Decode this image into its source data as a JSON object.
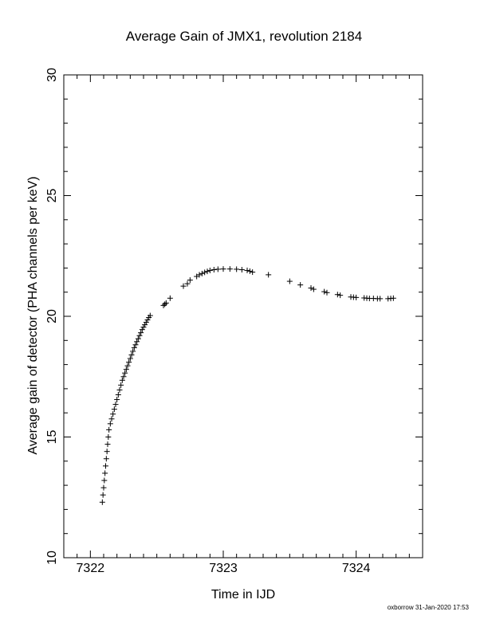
{
  "chart_data": {
    "type": "scatter",
    "title": "Average Gain of JMX1, revolution 2184",
    "xlabel": "Time in IJD",
    "ylabel": "Average gain of detector (PHA channels per keV)",
    "xlim": [
      7321.8,
      7324.5
    ],
    "ylim": [
      10,
      30
    ],
    "xticks": [
      7322,
      7323,
      7324
    ],
    "yticks": [
      10,
      15,
      20,
      25,
      30
    ],
    "marker": "+",
    "marker_color": "#000000",
    "grid": false,
    "points": [
      [
        7322.09,
        12.3
      ],
      [
        7322.095,
        12.6
      ],
      [
        7322.1,
        12.9
      ],
      [
        7322.105,
        13.2
      ],
      [
        7322.11,
        13.5
      ],
      [
        7322.115,
        13.8
      ],
      [
        7322.12,
        14.1
      ],
      [
        7322.125,
        14.4
      ],
      [
        7322.13,
        14.7
      ],
      [
        7322.135,
        15.0
      ],
      [
        7322.14,
        15.3
      ],
      [
        7322.15,
        15.55
      ],
      [
        7322.16,
        15.75
      ],
      [
        7322.17,
        15.95
      ],
      [
        7322.18,
        16.15
      ],
      [
        7322.19,
        16.35
      ],
      [
        7322.2,
        16.55
      ],
      [
        7322.21,
        16.75
      ],
      [
        7322.22,
        16.95
      ],
      [
        7322.23,
        17.15
      ],
      [
        7322.24,
        17.35
      ],
      [
        7322.25,
        17.5
      ],
      [
        7322.26,
        17.65
      ],
      [
        7322.27,
        17.8
      ],
      [
        7322.28,
        17.95
      ],
      [
        7322.29,
        18.1
      ],
      [
        7322.3,
        18.25
      ],
      [
        7322.31,
        18.4
      ],
      [
        7322.32,
        18.55
      ],
      [
        7322.33,
        18.7
      ],
      [
        7322.34,
        18.82
      ],
      [
        7322.35,
        18.95
      ],
      [
        7322.36,
        19.07
      ],
      [
        7322.37,
        19.2
      ],
      [
        7322.38,
        19.32
      ],
      [
        7322.39,
        19.45
      ],
      [
        7322.4,
        19.55
      ],
      [
        7322.41,
        19.65
      ],
      [
        7322.42,
        19.75
      ],
      [
        7322.43,
        19.85
      ],
      [
        7322.44,
        19.95
      ],
      [
        7322.45,
        20.03
      ],
      [
        7322.55,
        20.45
      ],
      [
        7322.56,
        20.5
      ],
      [
        7322.57,
        20.55
      ],
      [
        7322.6,
        20.75
      ],
      [
        7322.7,
        21.25
      ],
      [
        7322.73,
        21.35
      ],
      [
        7322.75,
        21.5
      ],
      [
        7322.8,
        21.65
      ],
      [
        7322.82,
        21.72
      ],
      [
        7322.84,
        21.77
      ],
      [
        7322.86,
        21.82
      ],
      [
        7322.88,
        21.86
      ],
      [
        7322.9,
        21.9
      ],
      [
        7322.93,
        21.93
      ],
      [
        7322.96,
        21.95
      ],
      [
        7323.0,
        21.96
      ],
      [
        7323.05,
        21.96
      ],
      [
        7323.1,
        21.95
      ],
      [
        7323.14,
        21.93
      ],
      [
        7323.18,
        21.9
      ],
      [
        7323.2,
        21.87
      ],
      [
        7323.22,
        21.83
      ],
      [
        7323.34,
        21.72
      ],
      [
        7323.5,
        21.45
      ],
      [
        7323.58,
        21.3
      ],
      [
        7323.66,
        21.17
      ],
      [
        7323.68,
        21.12
      ],
      [
        7323.76,
        21.02
      ],
      [
        7323.78,
        20.98
      ],
      [
        7323.86,
        20.9
      ],
      [
        7323.88,
        20.87
      ],
      [
        7323.96,
        20.8
      ],
      [
        7323.98,
        20.79
      ],
      [
        7324.0,
        20.78
      ],
      [
        7324.06,
        20.76
      ],
      [
        7324.08,
        20.75
      ],
      [
        7324.1,
        20.74
      ],
      [
        7324.13,
        20.74
      ],
      [
        7324.16,
        20.73
      ],
      [
        7324.18,
        20.73
      ],
      [
        7324.24,
        20.73
      ],
      [
        7324.26,
        20.74
      ],
      [
        7324.28,
        20.75
      ]
    ]
  },
  "footer": {
    "credit": "oxborrow 31-Jan-2020 17:53"
  }
}
